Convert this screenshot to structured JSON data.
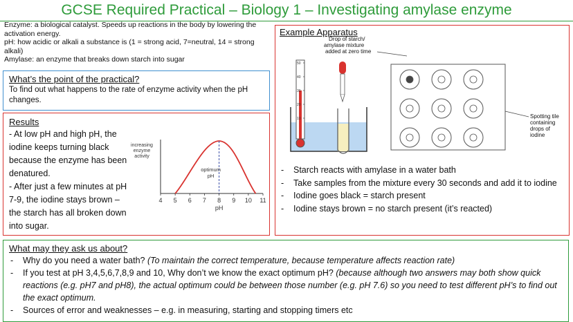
{
  "title": "GCSE Required Practical – Biology 1 – Investigating amylase enzyme",
  "definitions": [
    "Enzyme: a biological catalyst. Speeds up reactions in the body by lowering the activation energy.",
    "pH: how acidic or alkali a substance is (1 = strong acid, 7=neutral, 14 = strong alkali)",
    "Amylase: an enzyme that breaks down starch into sugar"
  ],
  "point": {
    "heading": "What’s the point of the practical?",
    "text": "To find out what happens to the rate of enzyme activity when the pH changes."
  },
  "results": {
    "heading": "Results",
    "text1": "- At low pH and high pH, the iodine keeps turning black because the enzyme has been denatured.",
    "text2": "- After just a few minutes at pH 7-9, the iodine stays brown – the starch has all broken down into sugar."
  },
  "chart_data": {
    "type": "line",
    "ylabel": "increasing enzyme activity",
    "xlabel": "pH",
    "x_ticks": [
      "4",
      "5",
      "6",
      "7",
      "8",
      "9",
      "10",
      "11"
    ],
    "xlim": [
      4,
      11
    ],
    "annotation": "optimum pH",
    "optimum_x": 8,
    "curve_start_x": 5,
    "curve_end_x": 10.5,
    "curve_color": "#d9332f"
  },
  "apparatus": {
    "heading": "Example Apparatus",
    "drop_label": "Drop of starch/ amylase mixture added at zero time",
    "tile_label": "Spotting tile containing drops of iodine",
    "thermo_ticks": [
      "50",
      "40",
      "30",
      "20",
      "10"
    ],
    "bullets": [
      "Starch reacts with amylase in a water bath",
      "Take samples from the mixture every 30 seconds and add it to iodine",
      "Iodine goes black = starch present",
      "Iodine stays brown = no starch present (it’s reacted)"
    ]
  },
  "ask": {
    "heading": "What may they ask us about?",
    "items": [
      {
        "q": "Why do you need a water bath? ",
        "a": "(To maintain the correct temperature, because temperature affects reaction rate)"
      },
      {
        "q": "If you test at pH 3,4,5,6,7,8,9 and 10, Why don’t we know the exact optimum pH? ",
        "a": "(because although two answers may both show quick reactions (e.g. pH7 and pH8), the actual optimum could be between those number (e.g. pH 7.6) so you need to test different pH’s to find out the exact optimum."
      },
      {
        "q": "Sources of error and weaknesses – e.g. in measuring, starting and stopping timers etc",
        "a": ""
      }
    ]
  }
}
